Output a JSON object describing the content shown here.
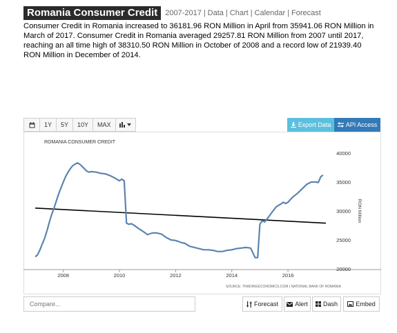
{
  "header": {
    "title": "Romania Consumer Credit",
    "nav": [
      "2007-2017",
      "Data",
      "Chart",
      "Calendar",
      "Forecast"
    ]
  },
  "description": "Consumer Credit in Romania increased to 36181.96 RON Million in April from 35941.06 RON Million in March of 2017. Consumer Credit in Romania averaged 29257.81 RON Million from 2007 until 2017, reaching an all time high of 38310.50 RON Million in October of 2008 and a record low of 21939.40 RON Million in December of 2014.",
  "toolbar": {
    "calendar_icon": "calendar-icon",
    "ranges": [
      "1Y",
      "5Y",
      "10Y",
      "MAX"
    ],
    "chart_type_icon": "bar-chart-icon",
    "export_label": "Export Data",
    "api_label": "API Access",
    "export_icon": "download-icon",
    "api_icon": "swap-icon"
  },
  "bottom": {
    "compare_placeholder": "Compare...",
    "forecast_label": "Forecast",
    "alert_label": "Alert",
    "dash_label": "Dash",
    "embed_label": "Embed"
  },
  "colors": {
    "line": "#5b84b1",
    "trend": "#000000",
    "export": "#5bc0de",
    "api": "#337ab7"
  },
  "chart_data": {
    "type": "line",
    "title": "ROMANIA CONSUMER CREDIT",
    "ylabel": "RON Million",
    "source": "SOURCE: TRADINGECONOMICS.COM | NATIONAL BANK OF ROMANIA",
    "xlim": [
      2007.0,
      2017.35
    ],
    "ylim": [
      20000,
      40000
    ],
    "xticks": [
      2008,
      2010,
      2012,
      2014,
      2016
    ],
    "yticks": [
      20000,
      25000,
      30000,
      35000,
      40000
    ],
    "grid": false,
    "series": [
      {
        "x": [
          2007.0,
          2007.08,
          2007.17,
          2007.25,
          2007.33,
          2007.42,
          2007.5,
          2007.58,
          2007.67,
          2007.75,
          2007.83,
          2007.92,
          2008.0,
          2008.08,
          2008.17,
          2008.25,
          2008.33,
          2008.42,
          2008.5,
          2008.58,
          2008.67,
          2008.75,
          2008.83,
          2008.92,
          2009.0,
          2009.17,
          2009.33,
          2009.5,
          2009.67,
          2009.83,
          2010.0,
          2010.08,
          2010.17,
          2010.25,
          2010.33,
          2010.42,
          2010.5,
          2010.67,
          2010.83,
          2011.0,
          2011.17,
          2011.33,
          2011.5,
          2011.67,
          2011.83,
          2012.0,
          2012.17,
          2012.33,
          2012.5,
          2012.67,
          2012.83,
          2013.0,
          2013.17,
          2013.33,
          2013.5,
          2013.67,
          2013.83,
          2014.0,
          2014.17,
          2014.33,
          2014.5,
          2014.67,
          2014.83,
          2014.92,
          2015.0,
          2015.08,
          2015.17,
          2015.25,
          2015.33,
          2015.42,
          2015.5,
          2015.58,
          2015.67,
          2015.75,
          2015.83,
          2015.92,
          2016.0,
          2016.17,
          2016.33,
          2016.5,
          2016.67,
          2016.83,
          2017.0,
          2017.08,
          2017.17,
          2017.25
        ],
        "y": [
          22100,
          22400,
          23300,
          24300,
          25200,
          26600,
          28000,
          29300,
          30500,
          31700,
          32900,
          34000,
          35000,
          35900,
          36700,
          37300,
          37800,
          38100,
          38300,
          38100,
          37700,
          37300,
          36900,
          36700,
          36800,
          36700,
          36500,
          36400,
          36100,
          35700,
          35200,
          35500,
          35200,
          27900,
          27700,
          27800,
          27600,
          27000,
          26500,
          25900,
          26200,
          26200,
          26000,
          25400,
          25000,
          24900,
          24600,
          24400,
          23900,
          23700,
          23500,
          23300,
          23300,
          23200,
          23000,
          23000,
          23200,
          23300,
          23500,
          23600,
          23700,
          23600,
          21939,
          21939,
          27700,
          28300,
          28100,
          28600,
          29100,
          29700,
          30200,
          30700,
          31000,
          31200,
          31500,
          31300,
          31500,
          32400,
          33000,
          33800,
          34600,
          35000,
          35000,
          34900,
          35941,
          36182
        ]
      }
    ],
    "trendline": {
      "x": [
        2007.0,
        2017.35
      ],
      "y": [
        30500,
        27900
      ]
    }
  }
}
